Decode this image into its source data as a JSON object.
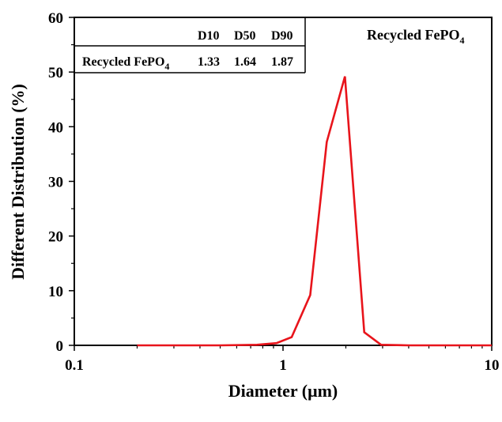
{
  "chart_data": {
    "type": "line",
    "xlabel": "Diameter (μm)",
    "ylabel": "Different Distribution (%)",
    "xscale": "log",
    "xlim": [
      0.1,
      10
    ],
    "ylim": [
      0,
      60
    ],
    "x_ticks": [
      0.1,
      1,
      10
    ],
    "x_tick_labels": [
      "0.1",
      "1",
      "10"
    ],
    "y_ticks": [
      0,
      10,
      20,
      30,
      40,
      50,
      60
    ],
    "y_tick_labels": [
      "0",
      "10",
      "20",
      "30",
      "40",
      "50",
      "60"
    ],
    "grid": false,
    "legend": {
      "position": "top-right",
      "label": "Recycled FePO",
      "label_subscript": "4"
    },
    "series": [
      {
        "name": "Recycled FePO4",
        "color": "#e8141b",
        "x": [
          0.2,
          0.3,
          0.5,
          0.75,
          0.93,
          1.1,
          1.35,
          1.62,
          1.98,
          2.45,
          2.95,
          4.0,
          6.0,
          10.0
        ],
        "y": [
          0,
          0,
          0,
          0.1,
          0.4,
          1.5,
          9.2,
          37.2,
          49.2,
          2.4,
          0.1,
          0,
          0,
          0
        ]
      }
    ],
    "table": {
      "headers": [
        "",
        "D10",
        "D50",
        "D90"
      ],
      "rows": [
        {
          "label": "Recycled FePO",
          "label_subscript": "4",
          "values": [
            "1.33",
            "1.64",
            "1.87"
          ]
        }
      ]
    }
  }
}
